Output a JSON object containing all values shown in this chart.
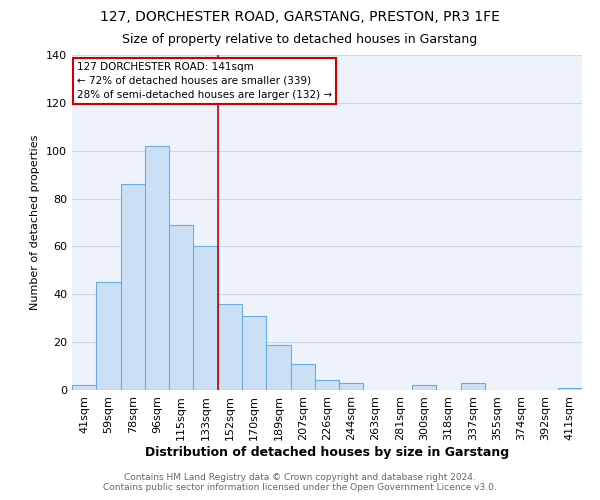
{
  "title": "127, DORCHESTER ROAD, GARSTANG, PRESTON, PR3 1FE",
  "subtitle": "Size of property relative to detached houses in Garstang",
  "xlabel": "Distribution of detached houses by size in Garstang",
  "ylabel": "Number of detached properties",
  "bar_labels": [
    "41sqm",
    "59sqm",
    "78sqm",
    "96sqm",
    "115sqm",
    "133sqm",
    "152sqm",
    "170sqm",
    "189sqm",
    "207sqm",
    "226sqm",
    "244sqm",
    "263sqm",
    "281sqm",
    "300sqm",
    "318sqm",
    "337sqm",
    "355sqm",
    "374sqm",
    "392sqm",
    "411sqm"
  ],
  "bar_heights": [
    2,
    45,
    86,
    102,
    69,
    60,
    36,
    31,
    19,
    11,
    4,
    3,
    0,
    0,
    2,
    0,
    3,
    0,
    0,
    0,
    1
  ],
  "bar_color": "#cce0f5",
  "bar_edge_color": "#6aaee0",
  "ylim": [
    0,
    140
  ],
  "yticks": [
    0,
    20,
    40,
    60,
    80,
    100,
    120,
    140
  ],
  "red_line_x": 5.5,
  "annotation_title": "127 DORCHESTER ROAD: 141sqm",
  "annotation_line1": "← 72% of detached houses are smaller (339)",
  "annotation_line2": "28% of semi-detached houses are larger (132) →",
  "annotation_box_color": "#ffffff",
  "annotation_box_edge_color": "#cc0000",
  "footer_line1": "Contains HM Land Registry data © Crown copyright and database right 2024.",
  "footer_line2": "Contains public sector information licensed under the Open Government Licence v3.0.",
  "background_color": "#ffffff",
  "plot_background_color": "#eef3fb",
  "grid_color": "#c8d8ea",
  "title_fontsize": 10,
  "subtitle_fontsize": 9,
  "xlabel_fontsize": 9,
  "ylabel_fontsize": 8,
  "tick_fontsize": 8,
  "annot_fontsize": 7.5,
  "footer_fontsize": 6.5
}
